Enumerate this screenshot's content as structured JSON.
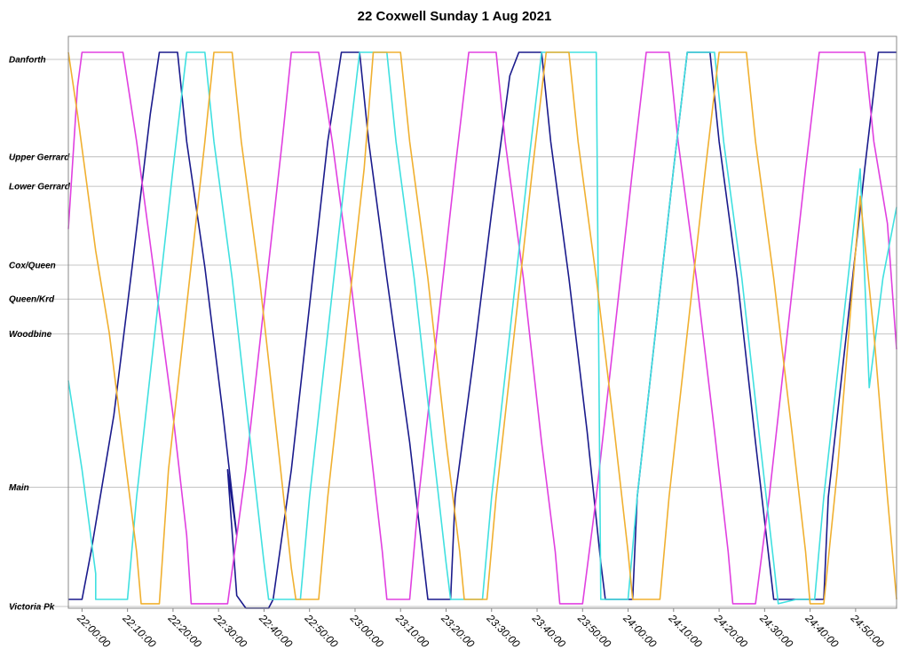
{
  "chart_data": {
    "type": "line",
    "title": "22 Coxwell Sunday 1 Aug 2021",
    "xlabel": "",
    "ylabel": "",
    "x_range_minutes": [
      1317,
      1499
    ],
    "x_ticks": [
      "22:00:00",
      "22:10:00",
      "22:20:00",
      "22:30:00",
      "22:40:00",
      "22:50:00",
      "23:00:00",
      "23:10:00",
      "23:20:00",
      "23:30:00",
      "23:40:00",
      "23:50:00",
      "24:00:00",
      "24:10:00",
      "24:20:00",
      "24:30:00",
      "24:40:00",
      "24:50:00"
    ],
    "stops": [
      {
        "name": "Danforth",
        "pos": 1.0
      },
      {
        "name": "Upper Gerrard",
        "pos": 0.822
      },
      {
        "name": "Lower Gerrard",
        "pos": 0.768
      },
      {
        "name": "Cox/Queen",
        "pos": 0.624
      },
      {
        "name": "Queen/Krd",
        "pos": 0.562
      },
      {
        "name": "Woodbine",
        "pos": 0.498
      },
      {
        "name": "Main",
        "pos": 0.218
      },
      {
        "name": "Victoria Pk",
        "pos": 0.0
      }
    ],
    "grid": true,
    "legend": "none",
    "series": [
      {
        "color": "#1a1a8c",
        "points": [
          [
            1317,
            0.013
          ],
          [
            1320,
            0.013
          ],
          [
            1322,
            0.1
          ],
          [
            1327,
            0.35
          ],
          [
            1331,
            0.62
          ],
          [
            1335,
            0.9
          ],
          [
            1337,
            1.013
          ],
          [
            1339,
            1.013
          ],
          [
            1341,
            1.013
          ],
          [
            1343,
            0.85
          ],
          [
            1347,
            0.62
          ],
          [
            1351,
            0.35
          ],
          [
            1354,
            0.13
          ],
          [
            1352,
            0.25
          ],
          [
            1352,
            0.25
          ],
          [
            1354,
            0.02
          ],
          [
            1356,
            -0.003
          ],
          [
            1361,
            -0.003
          ],
          [
            1362,
            0.013
          ],
          [
            1366,
            0.25
          ],
          [
            1370,
            0.55
          ],
          [
            1374,
            0.85
          ],
          [
            1377,
            1.013
          ],
          [
            1381,
            1.013
          ],
          [
            1383,
            0.85
          ],
          [
            1387,
            0.6
          ],
          [
            1392,
            0.3
          ],
          [
            1396,
            0.013
          ],
          [
            1401,
            0.013
          ],
          [
            1402,
            0.2
          ],
          [
            1406,
            0.45
          ],
          [
            1410,
            0.72
          ],
          [
            1414,
            0.97
          ],
          [
            1416,
            1.013
          ],
          [
            1421,
            1.013
          ],
          [
            1423,
            0.85
          ],
          [
            1427,
            0.6
          ],
          [
            1431,
            0.32
          ],
          [
            1434,
            0.08
          ],
          [
            1435,
            0.013
          ],
          [
            1441,
            0.013
          ],
          [
            1442,
            0.2
          ],
          [
            1446,
            0.5
          ],
          [
            1450,
            0.8
          ],
          [
            1453,
            1.013
          ],
          [
            1456,
            1.013
          ],
          [
            1458,
            1.013
          ],
          [
            1460,
            0.85
          ],
          [
            1464,
            0.6
          ],
          [
            1468,
            0.3
          ],
          [
            1472,
            0.013
          ],
          [
            1483,
            0.013
          ],
          [
            1484,
            0.2
          ],
          [
            1488,
            0.5
          ],
          [
            1492,
            0.8
          ],
          [
            1495,
            1.013
          ],
          [
            1499,
            1.013
          ]
        ]
      },
      {
        "color": "#e040e0",
        "points": [
          [
            1317,
            0.69
          ],
          [
            1319,
            0.95
          ],
          [
            1320,
            1.013
          ],
          [
            1329,
            1.013
          ],
          [
            1332,
            0.85
          ],
          [
            1336,
            0.6
          ],
          [
            1340,
            0.35
          ],
          [
            1343,
            0.13
          ],
          [
            1344,
            0.005
          ],
          [
            1352,
            0.005
          ],
          [
            1356,
            0.25
          ],
          [
            1360,
            0.55
          ],
          [
            1364,
            0.85
          ],
          [
            1366,
            1.013
          ],
          [
            1372,
            1.013
          ],
          [
            1375,
            0.85
          ],
          [
            1379,
            0.6
          ],
          [
            1383,
            0.32
          ],
          [
            1386,
            0.1
          ],
          [
            1387,
            0.013
          ],
          [
            1392,
            0.013
          ],
          [
            1394,
            0.2
          ],
          [
            1398,
            0.5
          ],
          [
            1402,
            0.8
          ],
          [
            1405,
            1.013
          ],
          [
            1411,
            1.013
          ],
          [
            1413,
            0.85
          ],
          [
            1417,
            0.6
          ],
          [
            1421,
            0.3
          ],
          [
            1424,
            0.1
          ],
          [
            1425,
            0.005
          ],
          [
            1430,
            0.005
          ],
          [
            1433,
            0.2
          ],
          [
            1437,
            0.5
          ],
          [
            1441,
            0.8
          ],
          [
            1444,
            1.013
          ],
          [
            1449,
            1.013
          ],
          [
            1451,
            0.85
          ],
          [
            1455,
            0.6
          ],
          [
            1459,
            0.32
          ],
          [
            1462,
            0.1
          ],
          [
            1463,
            0.005
          ],
          [
            1468,
            0.005
          ],
          [
            1471,
            0.2
          ],
          [
            1475,
            0.5
          ],
          [
            1479,
            0.8
          ],
          [
            1482,
            1.013
          ],
          [
            1492,
            1.013
          ],
          [
            1494,
            0.85
          ],
          [
            1497,
            0.7
          ],
          [
            1499,
            0.47
          ]
        ]
      },
      {
        "color": "#40e0e0",
        "points": [
          [
            1317,
            0.413
          ],
          [
            1320,
            0.25
          ],
          [
            1323,
            0.06
          ],
          [
            1323,
            0.013
          ],
          [
            1330,
            0.013
          ],
          [
            1332,
            0.2
          ],
          [
            1336,
            0.5
          ],
          [
            1340,
            0.8
          ],
          [
            1343,
            1.013
          ],
          [
            1347,
            1.013
          ],
          [
            1349,
            0.85
          ],
          [
            1353,
            0.6
          ],
          [
            1357,
            0.3
          ],
          [
            1360,
            0.08
          ],
          [
            1361,
            0.013
          ],
          [
            1368,
            0.013
          ],
          [
            1370,
            0.2
          ],
          [
            1374,
            0.5
          ],
          [
            1378,
            0.8
          ],
          [
            1381,
            1.013
          ],
          [
            1387,
            1.013
          ],
          [
            1389,
            0.85
          ],
          [
            1393,
            0.6
          ],
          [
            1397,
            0.3
          ],
          [
            1400,
            0.08
          ],
          [
            1401,
            0.013
          ],
          [
            1408,
            0.013
          ],
          [
            1410,
            0.2
          ],
          [
            1414,
            0.5
          ],
          [
            1418,
            0.8
          ],
          [
            1421,
            1.013
          ],
          [
            1433,
            1.013
          ],
          [
            1434,
            0.013
          ],
          [
            1440,
            0.013
          ],
          [
            1442,
            0.2
          ],
          [
            1446,
            0.5
          ],
          [
            1450,
            0.8
          ],
          [
            1453,
            1.013
          ],
          [
            1459,
            1.013
          ],
          [
            1461,
            0.85
          ],
          [
            1465,
            0.6
          ],
          [
            1469,
            0.3
          ],
          [
            1472,
            0.08
          ],
          [
            1473,
            0.005
          ],
          [
            1477,
            0.013
          ],
          [
            1481,
            0.013
          ],
          [
            1483,
            0.2
          ],
          [
            1487,
            0.5
          ],
          [
            1491,
            0.8
          ],
          [
            1493,
            0.4
          ],
          [
            1496,
            0.6
          ],
          [
            1499,
            0.73
          ]
        ]
      },
      {
        "color": "#f0b030",
        "points": [
          [
            1317,
            1.013
          ],
          [
            1319,
            0.9
          ],
          [
            1323,
            0.65
          ],
          [
            1326,
            0.5
          ],
          [
            1329,
            0.3
          ],
          [
            1332,
            0.1
          ],
          [
            1333,
            0.005
          ],
          [
            1337,
            0.005
          ],
          [
            1339,
            0.25
          ],
          [
            1343,
            0.55
          ],
          [
            1347,
            0.85
          ],
          [
            1349,
            1.013
          ],
          [
            1353,
            1.013
          ],
          [
            1355,
            0.85
          ],
          [
            1359,
            0.6
          ],
          [
            1363,
            0.3
          ],
          [
            1366,
            0.07
          ],
          [
            1367,
            0.013
          ],
          [
            1372,
            0.013
          ],
          [
            1374,
            0.2
          ],
          [
            1378,
            0.5
          ],
          [
            1382,
            0.8
          ],
          [
            1384,
            1.013
          ],
          [
            1390,
            1.013
          ],
          [
            1392,
            0.85
          ],
          [
            1396,
            0.6
          ],
          [
            1400,
            0.3
          ],
          [
            1403,
            0.1
          ],
          [
            1404,
            0.013
          ],
          [
            1409,
            0.013
          ],
          [
            1411,
            0.2
          ],
          [
            1415,
            0.5
          ],
          [
            1419,
            0.8
          ],
          [
            1422,
            1.013
          ],
          [
            1427,
            1.013
          ],
          [
            1429,
            0.85
          ],
          [
            1433,
            0.6
          ],
          [
            1437,
            0.32
          ],
          [
            1440,
            0.1
          ],
          [
            1441,
            0.013
          ],
          [
            1447,
            0.013
          ],
          [
            1449,
            0.2
          ],
          [
            1453,
            0.5
          ],
          [
            1457,
            0.8
          ],
          [
            1460,
            1.013
          ],
          [
            1466,
            1.013
          ],
          [
            1468,
            0.85
          ],
          [
            1472,
            0.6
          ],
          [
            1476,
            0.32
          ],
          [
            1479,
            0.1
          ],
          [
            1480,
            0.005
          ],
          [
            1483,
            0.005
          ],
          [
            1486,
            0.25
          ],
          [
            1489,
            0.55
          ],
          [
            1491,
            0.75
          ],
          [
            1494,
            0.5
          ],
          [
            1497,
            0.2
          ],
          [
            1499,
            0.013
          ]
        ]
      }
    ]
  }
}
